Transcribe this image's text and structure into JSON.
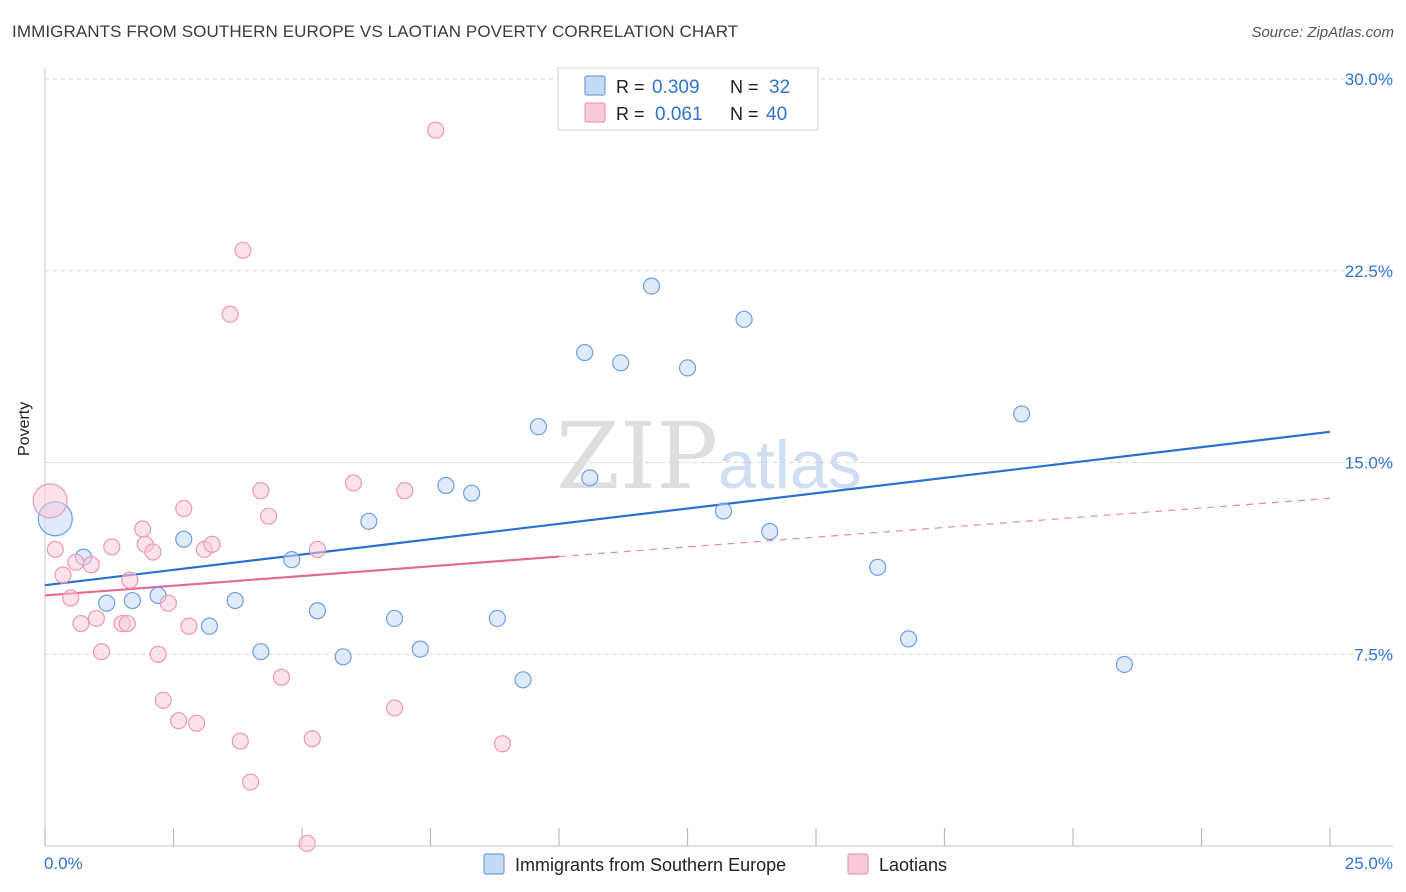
{
  "chart_data": {
    "type": "scatter",
    "title": "IMMIGRANTS FROM SOUTHERN EUROPE VS LAOTIAN POVERTY CORRELATION CHART",
    "source": "Source: ZipAtlas.com",
    "watermark": {
      "zip": "ZIP",
      "atlas": "atlas"
    },
    "ylabel": "Poverty",
    "xlim": [
      0,
      25
    ],
    "ylim": [
      0,
      30
    ],
    "x_tick_labels": [
      "0.0%",
      "25.0%"
    ],
    "y_ticks": [
      {
        "value": 30,
        "label": "30.0%"
      },
      {
        "value": 22.5,
        "label": "22.5%"
      },
      {
        "value": 15,
        "label": "15.0%"
      },
      {
        "value": 7.5,
        "label": "7.5%"
      }
    ],
    "legend": {
      "rows": [
        {
          "r_label": "R = ",
          "r_value": "0.309",
          "n_label": "N = ",
          "n_value": "32"
        },
        {
          "r_label": "R = ",
          "r_value": "0.061",
          "n_label": "N = ",
          "n_value": "40"
        }
      ]
    },
    "series": [
      {
        "name": "Immigrants from Southern Europe",
        "color": "#6f9fe0",
        "fill": "#c5daf5",
        "line_color": "#2c6fd1",
        "trend": {
          "x0": 0,
          "y0": 10.2,
          "x1": 25,
          "y1": 16.2,
          "dashed_from": null
        },
        "points": [
          {
            "x": 0.2,
            "y": 12.8,
            "big": true
          },
          {
            "x": 0.75,
            "y": 11.3
          },
          {
            "x": 1.2,
            "y": 9.5
          },
          {
            "x": 1.7,
            "y": 9.6
          },
          {
            "x": 2.2,
            "y": 9.8
          },
          {
            "x": 2.7,
            "y": 12.0
          },
          {
            "x": 3.2,
            "y": 8.6
          },
          {
            "x": 3.7,
            "y": 9.6
          },
          {
            "x": 4.2,
            "y": 7.6
          },
          {
            "x": 4.8,
            "y": 11.2
          },
          {
            "x": 5.3,
            "y": 9.2
          },
          {
            "x": 5.8,
            "y": 7.4
          },
          {
            "x": 6.3,
            "y": 12.7
          },
          {
            "x": 6.8,
            "y": 8.9
          },
          {
            "x": 7.3,
            "y": 7.7
          },
          {
            "x": 7.8,
            "y": 14.1
          },
          {
            "x": 8.3,
            "y": 13.8
          },
          {
            "x": 8.8,
            "y": 8.9
          },
          {
            "x": 9.3,
            "y": 6.5
          },
          {
            "x": 9.6,
            "y": 16.4
          },
          {
            "x": 10.5,
            "y": 19.3
          },
          {
            "x": 10.6,
            "y": 14.4
          },
          {
            "x": 11.2,
            "y": 18.9
          },
          {
            "x": 11.8,
            "y": 21.9
          },
          {
            "x": 12.5,
            "y": 18.7
          },
          {
            "x": 13.2,
            "y": 13.1
          },
          {
            "x": 13.6,
            "y": 20.6
          },
          {
            "x": 14.1,
            "y": 12.3
          },
          {
            "x": 16.2,
            "y": 10.9
          },
          {
            "x": 16.8,
            "y": 8.1
          },
          {
            "x": 19.0,
            "y": 16.9
          },
          {
            "x": 21.0,
            "y": 7.1
          }
        ]
      },
      {
        "name": "Laotians",
        "color": "#ec9ab4",
        "fill": "#f8cbda",
        "line_color": "#e06b98",
        "trend": {
          "x0": 0,
          "y0": 9.8,
          "x1": 25,
          "y1": 13.6,
          "dashed_from": 10
        },
        "points": [
          {
            "x": 0.1,
            "y": 13.5,
            "big": true
          },
          {
            "x": 0.2,
            "y": 11.6
          },
          {
            "x": 0.35,
            "y": 10.6
          },
          {
            "x": 0.5,
            "y": 9.7
          },
          {
            "x": 0.6,
            "y": 11.1
          },
          {
            "x": 0.7,
            "y": 8.7
          },
          {
            "x": 0.9,
            "y": 11.0
          },
          {
            "x": 1.0,
            "y": 8.9
          },
          {
            "x": 1.1,
            "y": 7.6
          },
          {
            "x": 1.3,
            "y": 11.7
          },
          {
            "x": 1.5,
            "y": 8.7
          },
          {
            "x": 1.6,
            "y": 8.7
          },
          {
            "x": 1.65,
            "y": 10.4
          },
          {
            "x": 1.9,
            "y": 12.4
          },
          {
            "x": 1.95,
            "y": 11.8
          },
          {
            "x": 2.1,
            "y": 11.5
          },
          {
            "x": 2.2,
            "y": 7.5
          },
          {
            "x": 2.3,
            "y": 5.7
          },
          {
            "x": 2.4,
            "y": 9.5
          },
          {
            "x": 2.6,
            "y": 4.9
          },
          {
            "x": 2.7,
            "y": 13.2
          },
          {
            "x": 2.8,
            "y": 8.6
          },
          {
            "x": 2.95,
            "y": 4.8
          },
          {
            "x": 3.1,
            "y": 11.6
          },
          {
            "x": 3.25,
            "y": 11.8
          },
          {
            "x": 3.6,
            "y": 20.8
          },
          {
            "x": 3.8,
            "y": 4.1
          },
          {
            "x": 3.85,
            "y": 23.3
          },
          {
            "x": 4.0,
            "y": 2.5
          },
          {
            "x": 4.2,
            "y": 13.9
          },
          {
            "x": 4.35,
            "y": 12.9
          },
          {
            "x": 4.6,
            "y": 6.6
          },
          {
            "x": 5.1,
            "y": 0.1
          },
          {
            "x": 5.2,
            "y": 4.2
          },
          {
            "x": 5.3,
            "y": 11.6
          },
          {
            "x": 6.0,
            "y": 14.2
          },
          {
            "x": 6.8,
            "y": 5.4
          },
          {
            "x": 7.0,
            "y": 13.9
          },
          {
            "x": 7.6,
            "y": 28.0
          },
          {
            "x": 8.9,
            "y": 4.0
          }
        ]
      }
    ]
  }
}
